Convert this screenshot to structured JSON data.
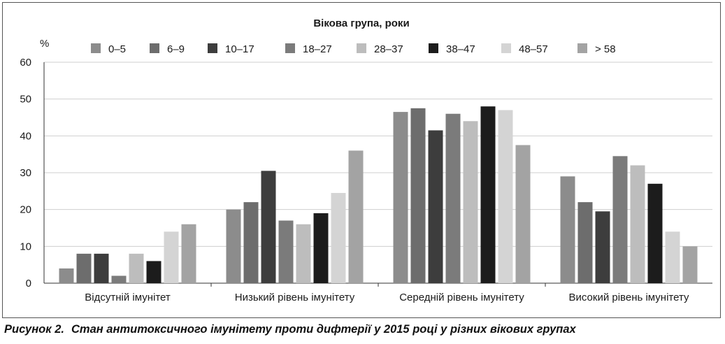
{
  "chart_data": {
    "type": "bar",
    "legend_title": "Вікова група, роки",
    "ylabel": "%",
    "ylim": [
      0,
      60
    ],
    "yticks": [
      "0",
      "10",
      "20",
      "30",
      "40",
      "50",
      "60"
    ],
    "grid": true,
    "legend_position": "top",
    "categories": [
      "Відсутній імунітет",
      "Низький рівень імунітету",
      "Середній рівень імунітету",
      "Високий рівень імунітету"
    ],
    "series": [
      {
        "name": "0–5",
        "color": "#8c8c8c",
        "values": [
          4,
          20,
          46.5,
          29
        ]
      },
      {
        "name": "6–9",
        "color": "#6d6d6d",
        "values": [
          8,
          22,
          47.5,
          22
        ]
      },
      {
        "name": "10–17",
        "color": "#3d3d3d",
        "values": [
          8,
          30.5,
          41.5,
          19.5
        ]
      },
      {
        "name": "18–27",
        "color": "#7b7b7b",
        "values": [
          2,
          17,
          46,
          34.5
        ]
      },
      {
        "name": "28–37",
        "color": "#bdbdbd",
        "values": [
          8,
          16,
          44,
          32
        ]
      },
      {
        "name": "38–47",
        "color": "#1c1c1c",
        "values": [
          6,
          19,
          48,
          27
        ]
      },
      {
        "name": "48–57",
        "color": "#d4d4d4",
        "values": [
          14,
          24.5,
          47,
          14
        ]
      },
      {
        "name": "> 58",
        "color": "#a3a3a3",
        "values": [
          16,
          36,
          37.5,
          10
        ]
      }
    ]
  },
  "caption": {
    "figure_label": "Рисунок 2.",
    "text": "Стан антитоксичного імунітету проти дифтерії у 2015 році у різних вікових групах"
  }
}
